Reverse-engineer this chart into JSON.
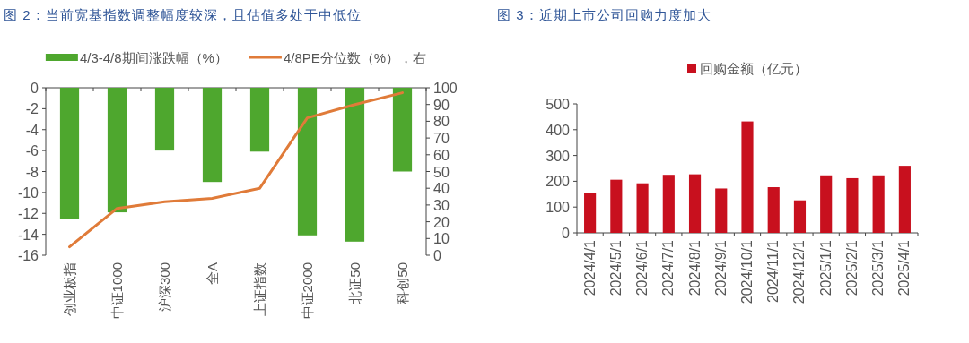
{
  "chart_data": [
    {
      "type": "bar",
      "title": "图 2：当前宽基指数调整幅度较深，且估值多处于中低位",
      "categories": [
        "创业板指",
        "中证1000",
        "沪深300",
        "全A",
        "上证指数",
        "中证2000",
        "北证50",
        "科创50"
      ],
      "series": [
        {
          "name": "4/3-4/8期间涨跌幅（%）",
          "color": "#4ea72e",
          "values": [
            -12.5,
            -11.9,
            -6.0,
            -9.0,
            -6.1,
            -14.1,
            -14.7,
            -8.0
          ]
        },
        {
          "name": "4/8PE分位数（%），右",
          "type": "line",
          "axis": "y2",
          "color": "#e07b39",
          "values": [
            5,
            28,
            32,
            34,
            40,
            82,
            90,
            97
          ]
        }
      ],
      "ylim": [
        -16,
        0
      ],
      "yticks": [
        -16,
        -14,
        -12,
        -10,
        -8,
        -6,
        -4,
        -2,
        0
      ],
      "y2lim": [
        0,
        100
      ],
      "y2ticks": [
        0,
        10,
        20,
        30,
        40,
        50,
        60,
        70,
        80,
        90,
        100
      ],
      "grid": false,
      "legend": "top",
      "marker": "none"
    },
    {
      "type": "bar",
      "title": "图 3：近期上市公司回购力度加大",
      "categories": [
        "2024/4/1",
        "2024/5/1",
        "2024/6/1",
        "2024/7/1",
        "2024/8/1",
        "2024/9/1",
        "2024/10/1",
        "2024/11/1",
        "2024/12/1",
        "2025/1/1",
        "2025/2/1",
        "2025/3/1",
        "2025/4/1"
      ],
      "series": [
        {
          "name": "回购金额（亿元）",
          "color": "#c8101e",
          "values": [
            153,
            206,
            192,
            225,
            227,
            172,
            432,
            177,
            126,
            223,
            212,
            223,
            260
          ]
        }
      ],
      "ylim": [
        0,
        500
      ],
      "yticks": [
        0,
        100,
        200,
        300,
        400,
        500
      ],
      "grid": false,
      "legend": "top"
    }
  ]
}
